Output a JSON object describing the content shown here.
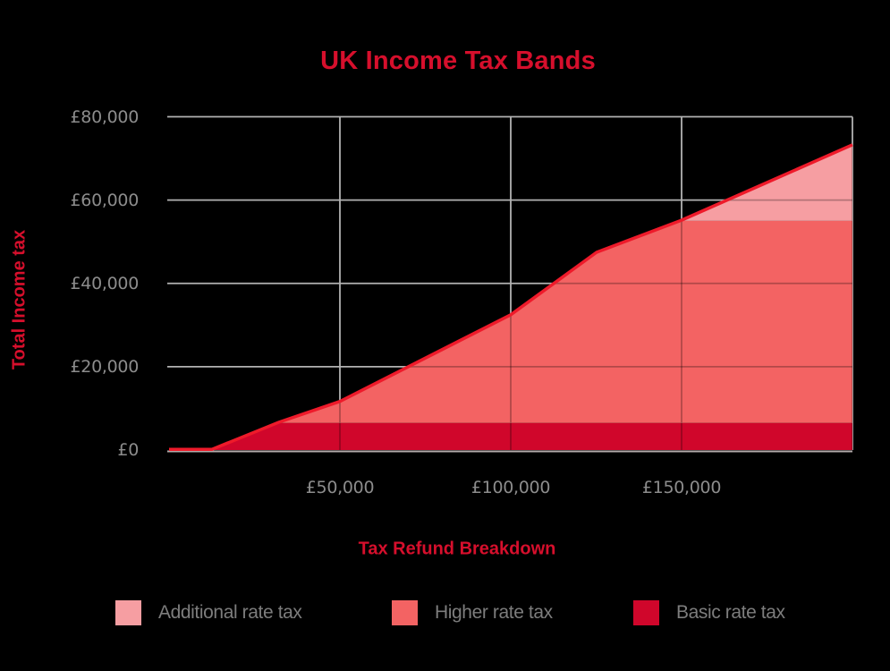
{
  "title": "UK Income Tax Bands",
  "colors": {
    "background": "#000000",
    "title": "#d60f2c",
    "axis_title": "#d60f2c",
    "tick_label": "#8c8c8c",
    "legend_text": "#7d7d7d",
    "gridline": "#b2b2b2",
    "gridline_over_fill": "rgba(0,0,0,0.27)",
    "baseline": "#b3abab",
    "total_line": "#ee1a2a",
    "basic_band": "#d0062b",
    "higher_band": "#f36363",
    "additional_band": "#f69ea2"
  },
  "chart_data": {
    "type": "area",
    "stacked": true,
    "title": "UK Income Tax Bands",
    "xlabel": "Tax Refund Breakdown",
    "ylabel": "Total Income tax",
    "xlim": [
      0,
      200000
    ],
    "ylim": [
      0,
      80000
    ],
    "grid": true,
    "legend_position": "bottom",
    "x_ticks": [
      {
        "value": 50000,
        "label": "£50,000"
      },
      {
        "value": 100000,
        "label": "£100,000"
      },
      {
        "value": 150000,
        "label": "£150,000"
      }
    ],
    "y_ticks": [
      {
        "value": 0,
        "label": "£0"
      },
      {
        "value": 20000,
        "label": "£20,000"
      },
      {
        "value": 40000,
        "label": "£40,000"
      },
      {
        "value": 60000,
        "label": "£60,000"
      },
      {
        "value": 80000,
        "label": "£80,000"
      }
    ],
    "x_gridlines": [
      50000,
      100000,
      150000,
      200000
    ],
    "y_gridlines": [
      20000,
      40000,
      60000,
      80000
    ],
    "x": [
      0,
      12570,
      32200,
      50000,
      100000,
      125140,
      150000,
      200000
    ],
    "series": [
      {
        "name": "Basic rate tax",
        "color": "#d0062b",
        "values": [
          0,
          0,
          6500,
          6500,
          6500,
          6500,
          6500,
          6500
        ]
      },
      {
        "name": "Higher rate tax",
        "color": "#f36363",
        "values": [
          0,
          0,
          0,
          5000,
          25800,
          40800,
          48500,
          48500
        ]
      },
      {
        "name": "Additional rate tax",
        "color": "#f69ea2",
        "values": [
          0,
          0,
          0,
          0,
          0,
          0,
          0,
          18100
        ]
      }
    ],
    "total_line": {
      "name": "Total income tax",
      "color": "#ee1a2a",
      "width": 3.5
    },
    "legend": [
      {
        "label": "Additional rate tax",
        "color": "#f69ea2"
      },
      {
        "label": "Higher rate tax",
        "color": "#f36363"
      },
      {
        "label": "Basic rate tax",
        "color": "#d0062b"
      }
    ]
  }
}
